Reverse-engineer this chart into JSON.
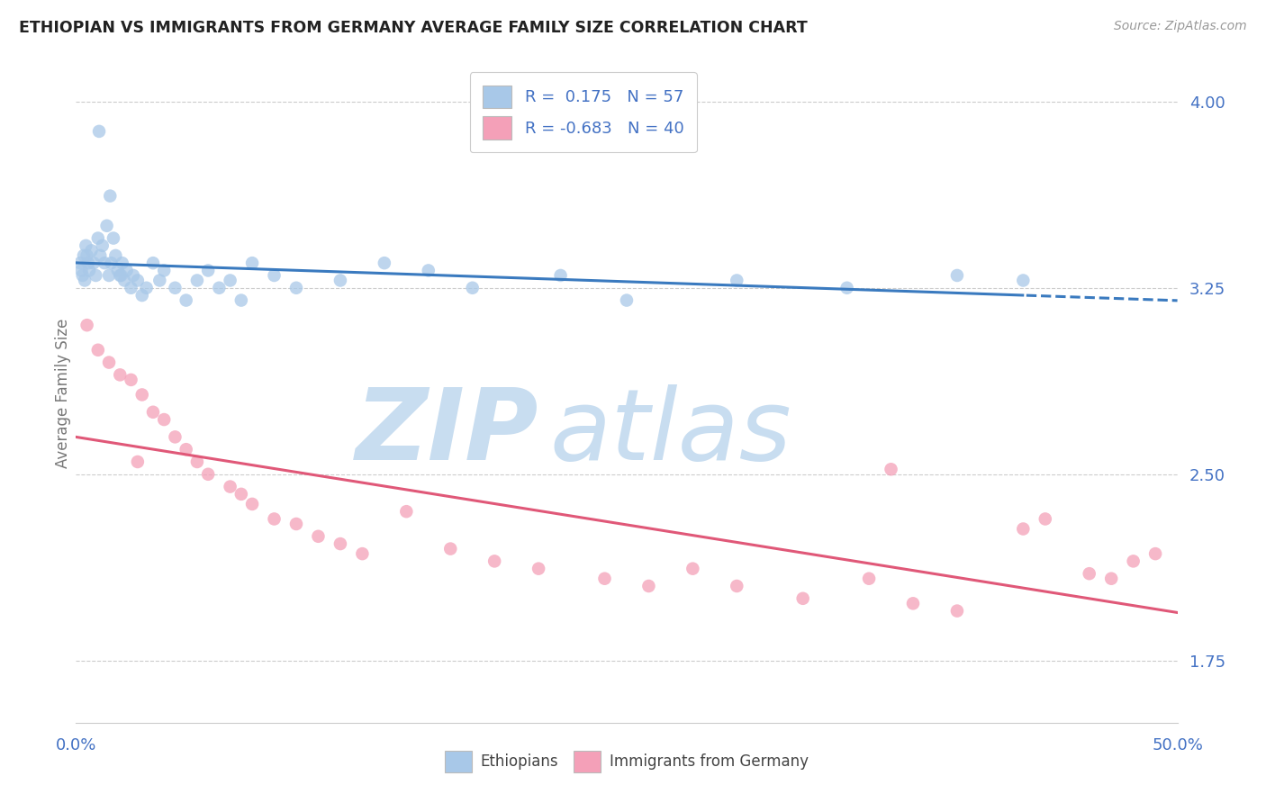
{
  "title": "ETHIOPIAN VS IMMIGRANTS FROM GERMANY AVERAGE FAMILY SIZE CORRELATION CHART",
  "source": "Source: ZipAtlas.com",
  "ylabel": "Average Family Size",
  "yticks": [
    1.75,
    2.5,
    3.25,
    4.0
  ],
  "xlim": [
    0.0,
    50.0
  ],
  "ylim": [
    1.5,
    4.15
  ],
  "r_ethiopian": 0.175,
  "n_ethiopian": 57,
  "r_germany": -0.683,
  "n_germany": 40,
  "legend_labels": [
    "Ethiopians",
    "Immigrants from Germany"
  ],
  "color_ethiopian": "#a8c8e8",
  "color_germany": "#f4a0b8",
  "trendline_color_ethiopian": "#3a7abf",
  "trendline_color_germany": "#e05878",
  "background_color": "#ffffff",
  "grid_color": "#cccccc",
  "title_color": "#222222",
  "axis_label_color": "#4472c4",
  "watermark_zip_color": "#c8ddf0",
  "watermark_atlas_color": "#c8ddf0",
  "ethiopian_x": [
    0.2,
    0.3,
    0.4,
    0.5,
    0.6,
    0.7,
    0.8,
    0.9,
    1.0,
    1.1,
    1.2,
    1.3,
    1.4,
    1.5,
    1.6,
    1.7,
    1.8,
    1.9,
    2.0,
    2.1,
    2.2,
    2.3,
    2.5,
    2.6,
    2.8,
    3.0,
    3.2,
    3.5,
    3.8,
    4.0,
    4.5,
    5.0,
    5.5,
    6.0,
    6.5,
    7.0,
    7.5,
    8.0,
    9.0,
    10.0,
    12.0,
    14.0,
    16.0,
    18.0,
    22.0,
    25.0,
    30.0,
    35.0,
    40.0,
    43.0,
    0.25,
    0.35,
    0.45,
    0.55,
    1.05,
    1.55,
    2.05
  ],
  "ethiopian_y": [
    3.35,
    3.3,
    3.28,
    3.38,
    3.32,
    3.4,
    3.35,
    3.3,
    3.45,
    3.38,
    3.42,
    3.35,
    3.5,
    3.3,
    3.35,
    3.45,
    3.38,
    3.32,
    3.3,
    3.35,
    3.28,
    3.32,
    3.25,
    3.3,
    3.28,
    3.22,
    3.25,
    3.35,
    3.28,
    3.32,
    3.25,
    3.2,
    3.28,
    3.32,
    3.25,
    3.28,
    3.2,
    3.35,
    3.3,
    3.25,
    3.28,
    3.35,
    3.32,
    3.25,
    3.3,
    3.2,
    3.28,
    3.25,
    3.3,
    3.28,
    3.32,
    3.38,
    3.42,
    3.35,
    3.88,
    3.62,
    3.3
  ],
  "germany_x": [
    0.5,
    1.0,
    1.5,
    2.0,
    2.5,
    3.0,
    3.5,
    4.0,
    4.5,
    5.0,
    5.5,
    6.0,
    7.0,
    7.5,
    8.0,
    9.0,
    10.0,
    11.0,
    12.0,
    13.0,
    15.0,
    17.0,
    19.0,
    21.0,
    24.0,
    26.0,
    28.0,
    30.0,
    33.0,
    36.0,
    38.0,
    40.0,
    43.0,
    44.0,
    46.0,
    47.0,
    48.0,
    49.0,
    37.0,
    2.8
  ],
  "germany_y": [
    3.1,
    3.0,
    2.95,
    2.9,
    2.88,
    2.82,
    2.75,
    2.72,
    2.65,
    2.6,
    2.55,
    2.5,
    2.45,
    2.42,
    2.38,
    2.32,
    2.3,
    2.25,
    2.22,
    2.18,
    2.35,
    2.2,
    2.15,
    2.12,
    2.08,
    2.05,
    2.12,
    2.05,
    2.0,
    2.08,
    1.98,
    1.95,
    2.28,
    2.32,
    2.1,
    2.08,
    2.15,
    2.18,
    2.52,
    2.55
  ]
}
